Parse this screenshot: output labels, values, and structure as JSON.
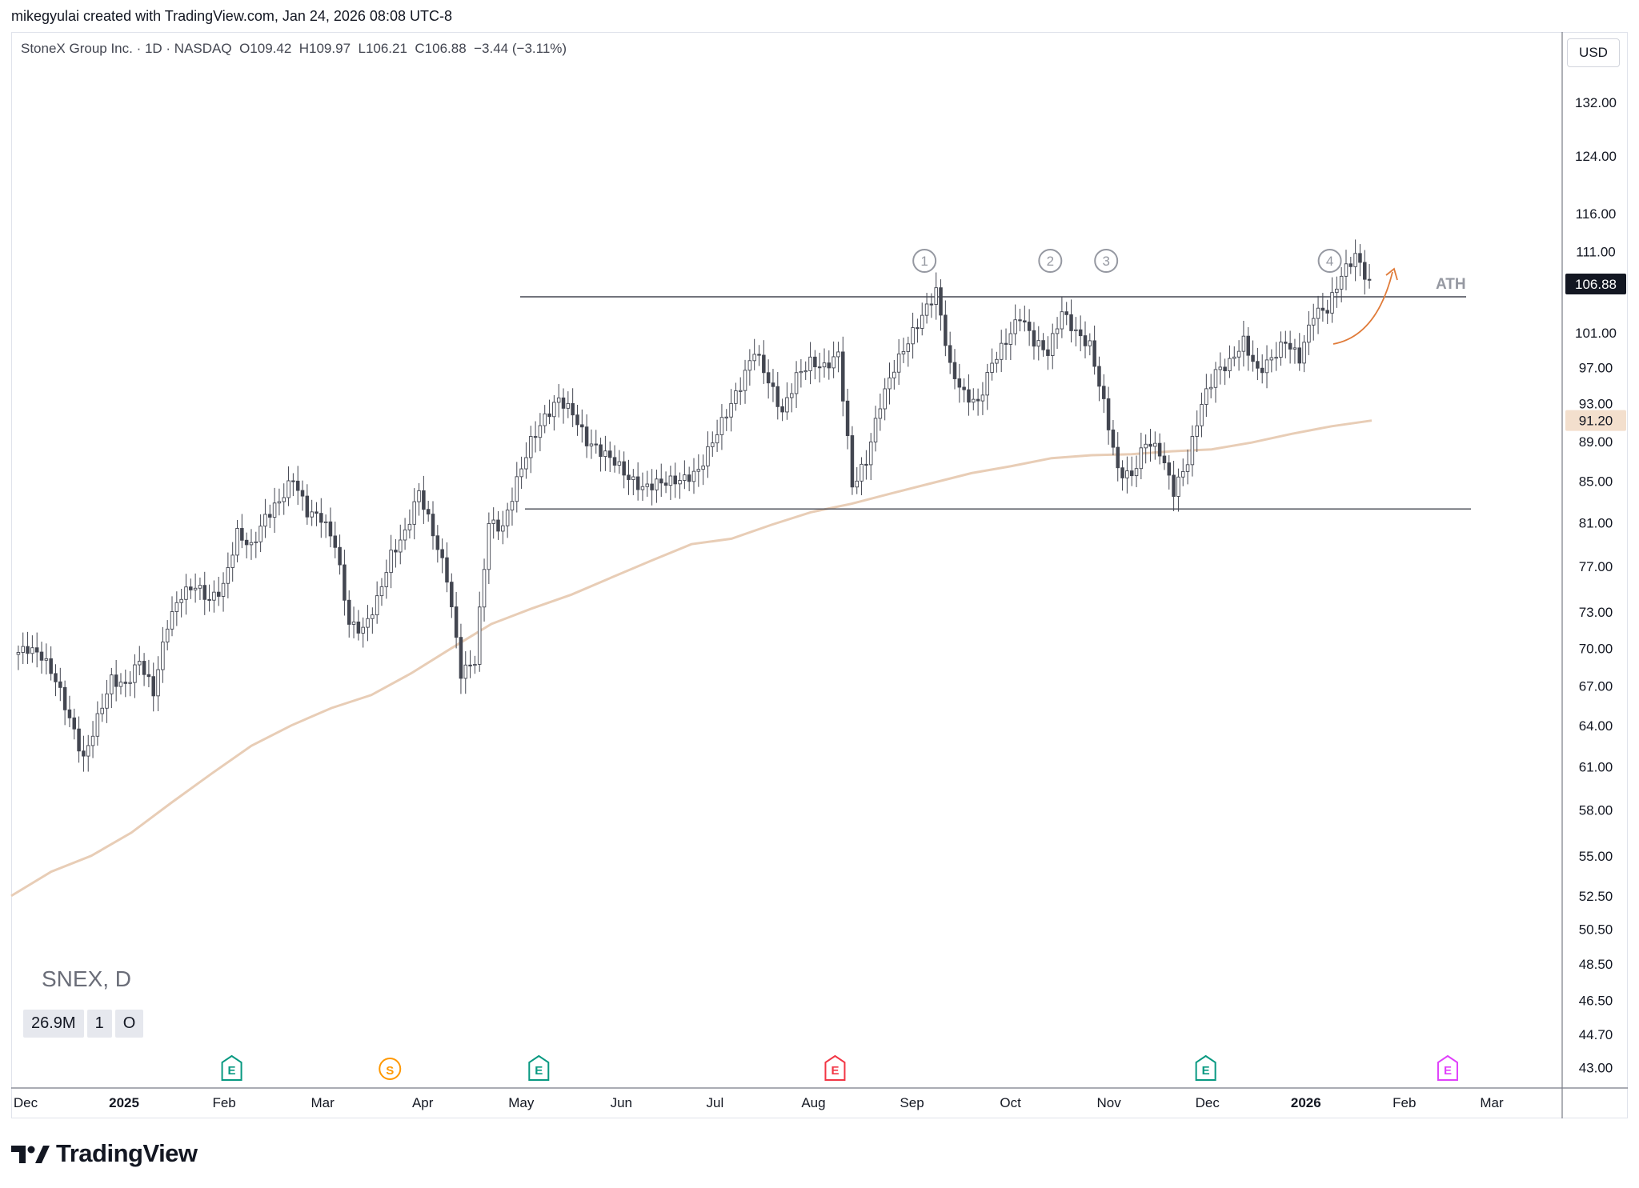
{
  "header": {
    "attribution": "mikegyulai created with TradingView.com, Jan 24, 2026 08:08 UTC-8"
  },
  "legend": {
    "symbol_line": "StoneX Group Inc. · 1D · NASDAQ",
    "open": "O109.42",
    "high": "H109.97",
    "low": "L106.21",
    "close": "C106.88",
    "change": "−3.44 (−3.11%)"
  },
  "currency_label": "USD",
  "ticker_label": "SNEX, D",
  "volume_row": [
    "26.9M",
    "1",
    "O"
  ],
  "brand": "TradingView",
  "colors": {
    "candle_up": "#ffffff",
    "candle_down": "#434651",
    "wick": "#434651",
    "moving_average": "#e8cdb6",
    "levels": "#434651",
    "arrow": "#e07b39",
    "earnings_green": "#089981",
    "earnings_red": "#f23645",
    "split_orange": "#ff9800",
    "future_magenta": "#e040fb"
  },
  "chart_data": {
    "type": "candlestick",
    "title": "StoneX Group Inc. · 1D · NASDAQ",
    "scale": "log",
    "ylim": [
      42,
      138
    ],
    "x_ticks": [
      "Dec",
      "2025",
      "Feb",
      "Mar",
      "Apr",
      "May",
      "Jun",
      "Jul",
      "Aug",
      "Sep",
      "Oct",
      "Nov",
      "Dec",
      "2026",
      "Feb",
      "Mar"
    ],
    "x_tick_bold": [
      "2025",
      "2026"
    ],
    "y_ticks": [
      "132.00",
      "124.00",
      "116.00",
      "111.00",
      "101.00",
      "97.00",
      "93.00",
      "89.00",
      "85.00",
      "81.00",
      "77.00",
      "73.00",
      "70.00",
      "67.00",
      "64.00",
      "61.00",
      "58.00",
      "55.00",
      "52.50",
      "50.50",
      "48.50",
      "46.50",
      "44.70",
      "43.00"
    ],
    "last_price_label": "106.88",
    "ma_price_label": "91.20",
    "price_path": [
      69.5,
      70,
      69.4,
      67.5,
      64.5,
      61.5,
      64.5,
      67.5,
      67,
      69,
      66.5,
      72,
      74.5,
      75.3,
      74,
      75.2,
      80,
      78.7,
      81.5,
      83,
      85.3,
      82,
      81.5,
      79,
      72,
      71.5,
      74,
      78,
      80,
      84,
      80,
      76,
      68,
      69,
      81,
      80.5,
      85,
      89,
      91.5,
      93.5,
      92,
      89,
      88,
      87,
      85.3,
      84.3,
      84.8,
      85,
      85.2,
      86,
      89,
      92,
      95,
      99,
      95.5,
      92,
      96,
      97.6,
      97,
      98.5,
      84.5,
      87,
      93,
      97,
      100,
      103,
      106,
      97,
      94,
      93,
      97.5,
      100,
      103,
      100,
      98.7,
      103.5,
      101,
      99.5,
      93,
      86,
      85.5,
      89,
      88,
      84,
      87,
      93,
      96.5,
      97.5,
      100,
      96.5,
      98,
      100,
      98,
      103.3,
      103.8,
      108,
      110.5,
      106.88
    ],
    "series": [
      {
        "name": "200 MA",
        "x_start": 0,
        "values": [
          52.5,
          54,
          55,
          56.5,
          58.5,
          60.5,
          62.5,
          64,
          65.3,
          66.3,
          68,
          70,
          72,
          73.3,
          74.5,
          76,
          77.5,
          79,
          79.5,
          80.8,
          82,
          82.8,
          83.8,
          84.8,
          85.8,
          86.5,
          87.3,
          87.6,
          87.7,
          88.0,
          88.2,
          88.9,
          89.8,
          90.6,
          91.2
        ]
      }
    ],
    "horizontal_levels": [
      {
        "name": "ATH",
        "value": 105.3
      },
      {
        "name": "",
        "value": 82.3
      }
    ],
    "annotations": [
      {
        "label": "1",
        "x_index": 65
      },
      {
        "label": "2",
        "x_index": 74
      },
      {
        "label": "3",
        "x_index": 78
      },
      {
        "label": "4",
        "x_index": 94
      },
      {
        "label": "ATH",
        "x_index": 97
      }
    ],
    "event_markers": [
      {
        "label": "E",
        "type": "earnings-good",
        "x": 0.136
      },
      {
        "label": "S",
        "type": "split",
        "x": 0.238
      },
      {
        "label": "E",
        "type": "earnings-good",
        "x": 0.334
      },
      {
        "label": "E",
        "type": "earnings-bad",
        "x": 0.525
      },
      {
        "label": "E",
        "type": "earnings-good",
        "x": 0.764
      },
      {
        "label": "E",
        "type": "earnings-future",
        "x": 0.92
      }
    ]
  }
}
